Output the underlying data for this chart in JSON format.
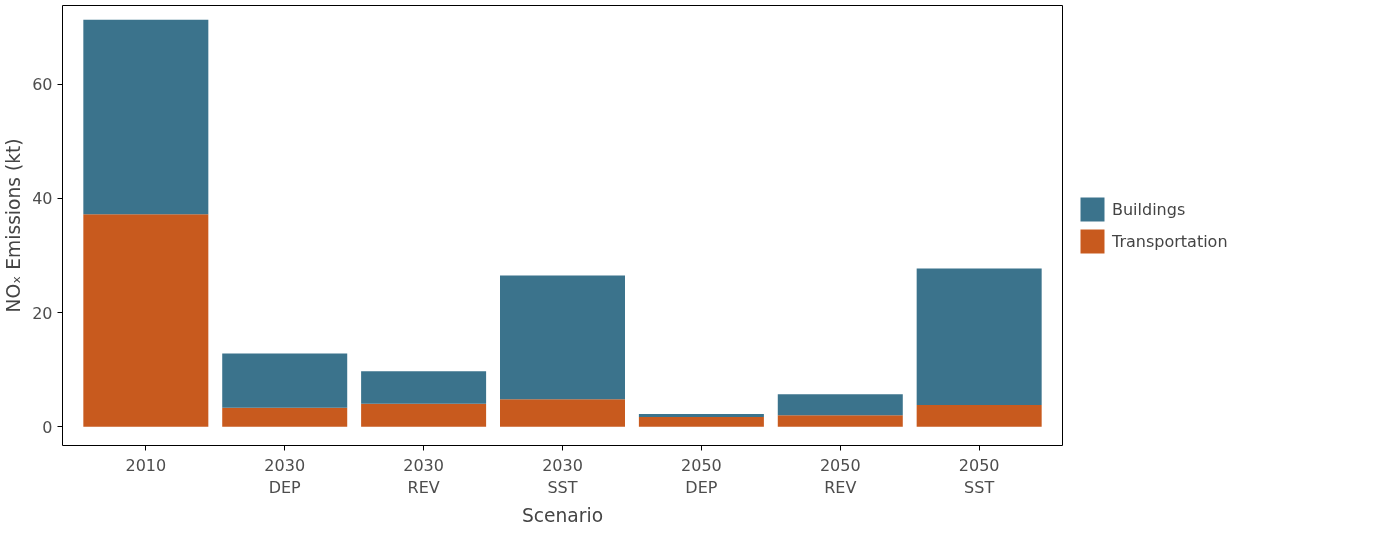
{
  "chart_data": {
    "type": "bar",
    "stacked": true,
    "xlabel": "Scenario",
    "ylabel": "NOₓ Emissions (kt)",
    "categories": [
      "2010",
      "2030\nDEP",
      "2030\nREV",
      "2030\nSST",
      "2050\nDEP",
      "2050\nREV",
      "2050\nSST"
    ],
    "series": [
      {
        "name": "Transportation",
        "color": "#c85a1e",
        "values": [
          37.2,
          3.3,
          4.0,
          4.8,
          1.7,
          2.0,
          3.8
        ]
      },
      {
        "name": "Buildings",
        "color": "#3b738c",
        "values": [
          34.1,
          9.5,
          5.7,
          21.7,
          0.5,
          3.7,
          23.9
        ]
      }
    ],
    "ylim": [
      -3.3,
      73.8
    ],
    "yticks": [
      0,
      20,
      40,
      60
    ],
    "grid": false,
    "legend": "right"
  }
}
